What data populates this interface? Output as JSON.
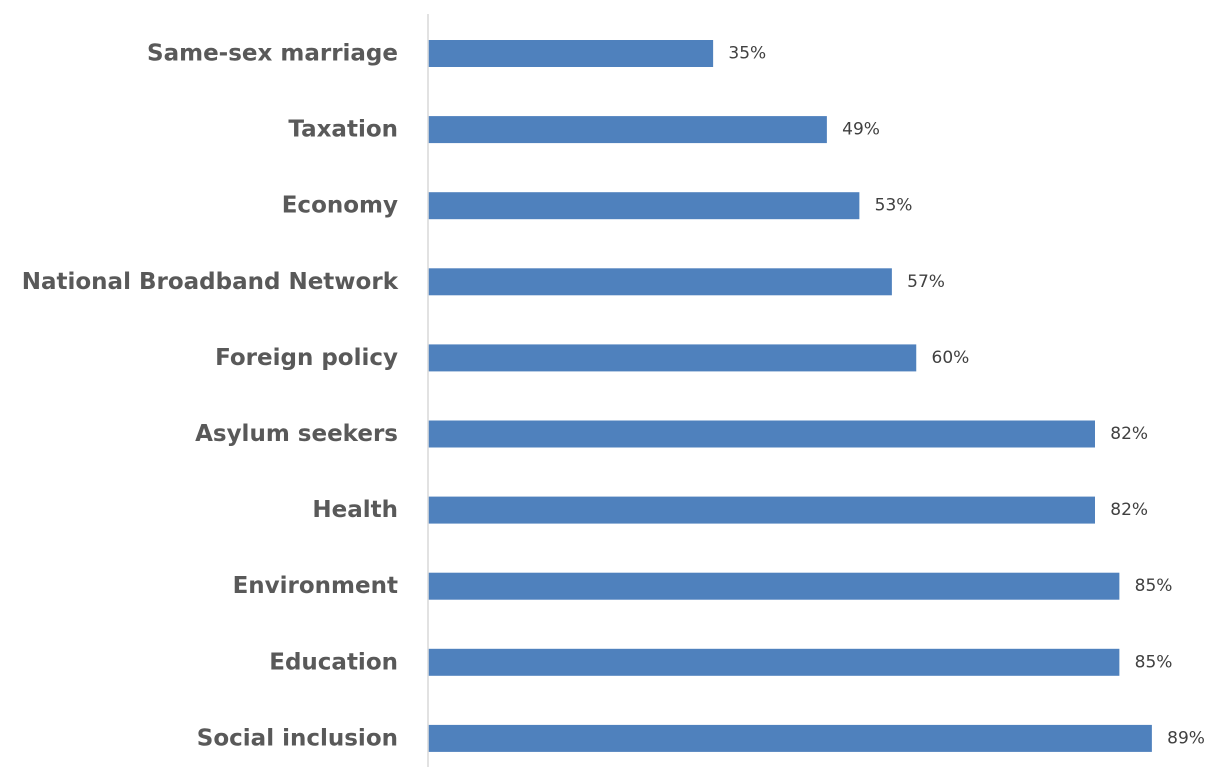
{
  "chart_data": {
    "type": "bar",
    "orientation": "horizontal",
    "categories": [
      "Same-sex marriage",
      "Taxation",
      "Economy",
      "National Broadband Network",
      "Foreign policy",
      "Asylum seekers",
      "Health",
      "Environment",
      "Education",
      "Social inclusion"
    ],
    "values": [
      35,
      49,
      53,
      57,
      60,
      82,
      82,
      85,
      85,
      89
    ],
    "value_labels": [
      "35%",
      "49%",
      "53%",
      "57%",
      "60%",
      "82%",
      "82%",
      "85%",
      "85%",
      "89%"
    ],
    "xlim": [
      0,
      100
    ],
    "unit": "%",
    "grid": false,
    "legend": "none",
    "colors": {
      "bar": "#4f81bd",
      "axis": "#d9d9d9",
      "category_text": "#595959",
      "value_text": "#404040"
    }
  }
}
